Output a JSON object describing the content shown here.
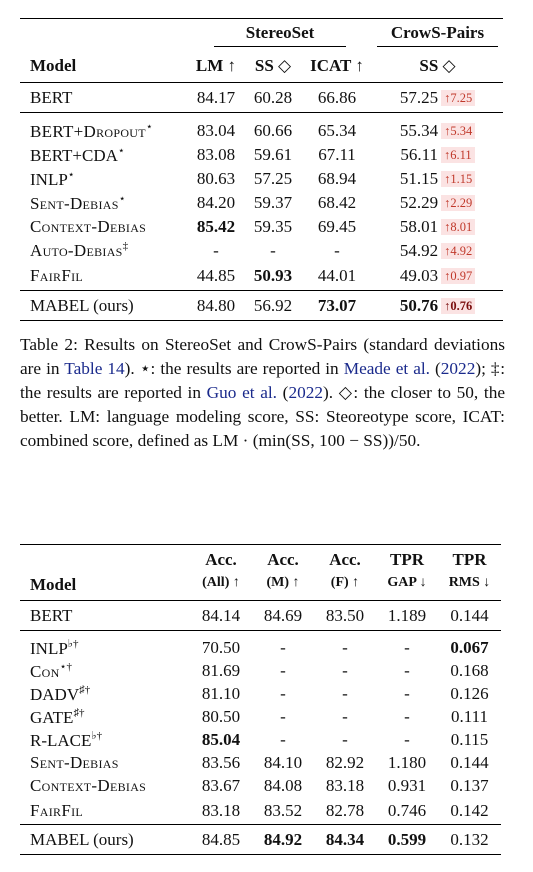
{
  "table1": {
    "header": {
      "model": "Model",
      "stereoset": "StereoSet",
      "crows": "CrowS-Pairs",
      "lm": "LM ↑",
      "ss": "SS ◇",
      "icat": "ICAT ↑",
      "cp_ss": "SS ◇"
    },
    "rows": [
      {
        "model": "BERT",
        "lm": "84.17",
        "ss": "60.28",
        "icat": "66.86",
        "cp": "57.25",
        "delta": "↑7.25"
      },
      {
        "model": "BERT+Dropout",
        "sup": "⋆",
        "lm": "83.04",
        "ss": "60.66",
        "icat": "65.34",
        "cp": "55.34",
        "delta": "↑5.34"
      },
      {
        "model": "BERT+CDA",
        "sup": "⋆",
        "lm": "83.08",
        "ss": "59.61",
        "icat": "67.11",
        "cp": "56.11",
        "delta": "↑6.11"
      },
      {
        "model": "INLP",
        "sup": "⋆",
        "lm": "80.63",
        "ss": "57.25",
        "icat": "68.94",
        "cp": "51.15",
        "delta": "↑1.15"
      },
      {
        "model": "Sent-Debias",
        "sup": "⋆",
        "lm": "84.20",
        "ss": "59.37",
        "icat": "68.42",
        "cp": "52.29",
        "delta": "↑2.29"
      },
      {
        "model": "Context-Debias",
        "lm": "85.42",
        "ss": "59.35",
        "icat": "69.45",
        "cp": "58.01",
        "delta": "↑8.01"
      },
      {
        "model": "Auto-Debias",
        "sup": "‡",
        "lm": "-",
        "ss": "-",
        "icat": "-",
        "cp": "54.92",
        "delta": "↑4.92"
      },
      {
        "model": "FairFil",
        "lm": "44.85",
        "ss": "50.93",
        "icat": "44.01",
        "cp": "49.03",
        "delta": "↑0.97"
      },
      {
        "model": "MABEL (ours)",
        "lm": "84.80",
        "ss": "56.92",
        "icat": "73.07",
        "cp": "50.76",
        "delta": "↑0.76"
      }
    ]
  },
  "caption": {
    "p1": "Table 2: Results on StereoSet and CrowS-Pairs (standard deviations are in ",
    "link1": "Table 14",
    "p2": "). ⋆: the results are reported in ",
    "link2": "Meade et al.",
    "p3": " (",
    "link3": "2022",
    "p4": "); ‡: the results are reported in ",
    "link4": "Guo et al.",
    "p5": " (",
    "link5": "2022",
    "p6": "). ◇: the closer to 50, the better. LM: language modeling score, SS: Steoreotype score, ICAT: combined score, defined as LM · (min(SS, 100 − SS))/50."
  },
  "table2": {
    "header": {
      "model": "Model",
      "c1a": "Acc.",
      "c1b": "(All) ↑",
      "c2a": "Acc.",
      "c2b": "(M) ↑",
      "c3a": "Acc.",
      "c3b": "(F) ↑",
      "c4a": "TPR",
      "c4b": "GAP ↓",
      "c5a": "TPR",
      "c5b": "RMS ↓"
    },
    "rows": [
      {
        "model": "BERT",
        "all": "84.14",
        "m": "84.69",
        "f": "83.50",
        "gap": "1.189",
        "rms": "0.144"
      },
      {
        "model": "INLP",
        "sup": "♭†",
        "all": "70.50",
        "m": "-",
        "f": "-",
        "gap": "-",
        "rms": "0.067"
      },
      {
        "model": "Con",
        "sup": "⋆†",
        "all": "81.69",
        "m": "-",
        "f": "-",
        "gap": "-",
        "rms": "0.168"
      },
      {
        "model": "DADV",
        "sup": "♯†",
        "all": "81.10",
        "m": "-",
        "f": "-",
        "gap": "-",
        "rms": "0.126"
      },
      {
        "model": "GATE",
        "sup": "♯†",
        "all": "80.50",
        "m": "-",
        "f": "-",
        "gap": "-",
        "rms": "0.111"
      },
      {
        "model": "R-LACE",
        "sup": "♭†",
        "all": "85.04",
        "m": "-",
        "f": "-",
        "gap": "-",
        "rms": "0.115"
      },
      {
        "model": "Sent-Debias",
        "all": "83.56",
        "m": "84.10",
        "f": "82.92",
        "gap": "1.180",
        "rms": "0.144"
      },
      {
        "model": "Context-Debias",
        "all": "83.67",
        "m": "84.08",
        "f": "83.18",
        "gap": "0.931",
        "rms": "0.137"
      },
      {
        "model": "FairFil",
        "all": "83.18",
        "m": "83.52",
        "f": "82.78",
        "gap": "0.746",
        "rms": "0.142"
      },
      {
        "model": "MABEL (ours)",
        "all": "84.85",
        "m": "84.92",
        "f": "84.34",
        "gap": "0.599",
        "rms": "0.132"
      }
    ]
  }
}
